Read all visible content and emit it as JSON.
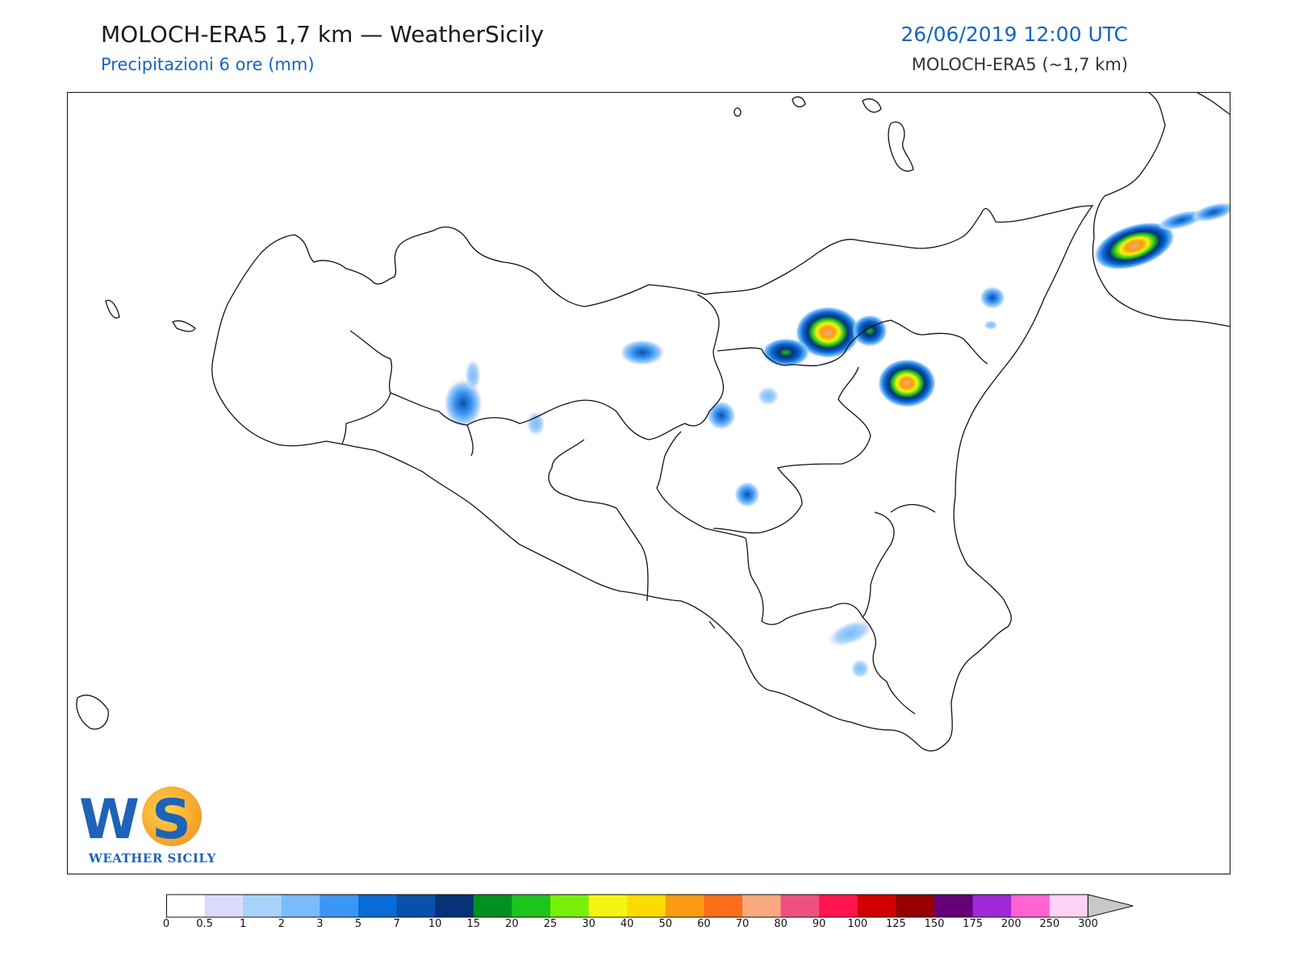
{
  "header": {
    "title": "MOLOCH-ERA5 1,7 km — WeatherSicily",
    "subtitle": "Precipitazioni 6 ore (mm)",
    "datetime": "26/06/2019 12:00 UTC",
    "model_label": "MOLOCH-ERA5 (~1,7 km)"
  },
  "logo": {
    "letters_w": "W",
    "letters_s": "S",
    "text": "WEATHER SICILY"
  },
  "map": {
    "variable": "6-hour precipitation",
    "unit": "mm"
  },
  "legend": {
    "levels": [
      "0",
      "0.5",
      "1",
      "2",
      "3",
      "5",
      "7",
      "10",
      "15",
      "20",
      "25",
      "30",
      "40",
      "50",
      "60",
      "70",
      "80",
      "90",
      "100",
      "125",
      "150",
      "175",
      "200",
      "250",
      "300"
    ],
    "colors": [
      "#ffffff",
      "#dcdcfa",
      "#a8d2fa",
      "#78bcfa",
      "#3c96f5",
      "#0a6ad7",
      "#0a50aa",
      "#053278",
      "#00911e",
      "#1ec31e",
      "#78f00a",
      "#f5f514",
      "#fadc00",
      "#fa9b14",
      "#fa6e19",
      "#faa87d",
      "#f0507d",
      "#ff1450",
      "#d20000",
      "#960000",
      "#640078",
      "#a028d7",
      "#ff64d2",
      "#ffd2f5"
    ],
    "extend_color": "#c8c8c8"
  }
}
